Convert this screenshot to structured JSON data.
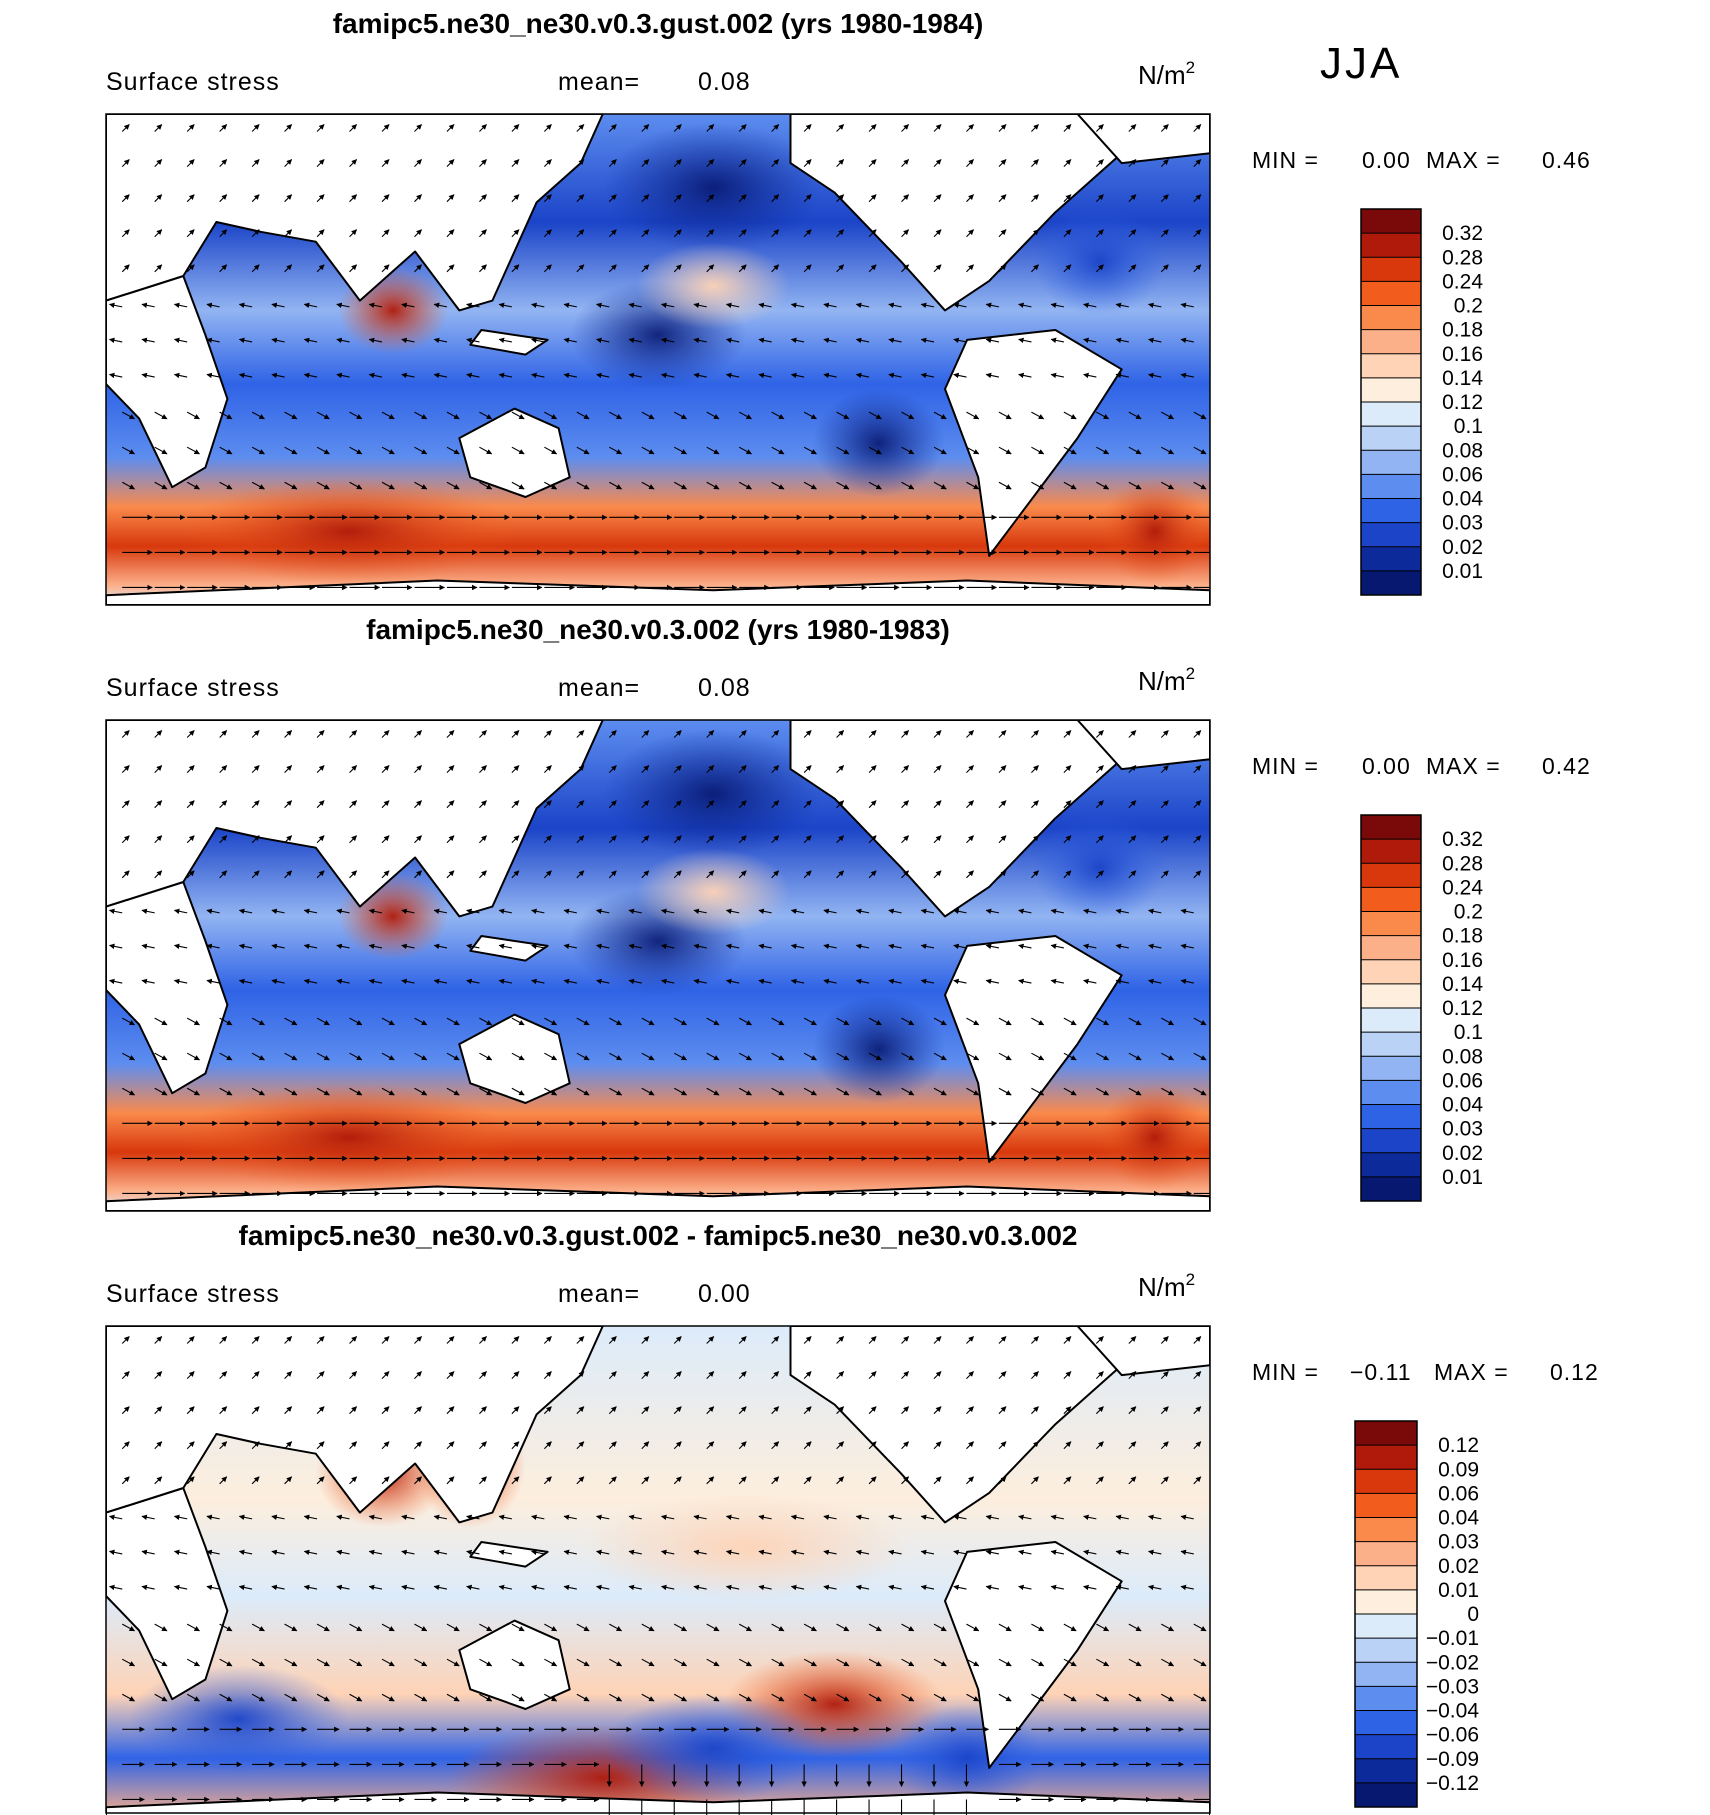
{
  "season": "JJA",
  "panels": [
    {
      "id": "gust",
      "title": "famipc5.ne30_ne30.v0.3.gust.002 (yrs 1980-1984)",
      "variable": "Surface stress",
      "mean_label": "mean=",
      "mean_value": "0.08",
      "unit": "N/m",
      "unit_sup": "2",
      "min_label": "MIN =",
      "min_value": "0.00",
      "max_label": "MAX =",
      "max_value": "0.46",
      "colorbar_labels": [
        "0.32",
        "0.28",
        "0.24",
        "0.2",
        "0.18",
        "0.16",
        "0.14",
        "0.12",
        "0.1",
        "0.08",
        "0.06",
        "0.04",
        "0.03",
        "0.02",
        "0.01"
      ],
      "colorbar_colors": [
        "#7a0a0a",
        "#b01a0a",
        "#d8380c",
        "#f25c1c",
        "#fa8a4c",
        "#fcb08a",
        "#fed3b6",
        "#fdeedd",
        "#dcebfa",
        "#b9d2f6",
        "#92b4f2",
        "#5d8def",
        "#2f63e6",
        "#1b44c8",
        "#0d2a9a",
        "#071870"
      ]
    },
    {
      "id": "control",
      "title": "famipc5.ne30_ne30.v0.3.002 (yrs 1980-1983)",
      "variable": "Surface stress",
      "mean_label": "mean=",
      "mean_value": "0.08",
      "unit": "N/m",
      "unit_sup": "2",
      "min_label": "MIN =",
      "min_value": "0.00",
      "max_label": "MAX =",
      "max_value": "0.42",
      "colorbar_labels": [
        "0.32",
        "0.28",
        "0.24",
        "0.2",
        "0.18",
        "0.16",
        "0.14",
        "0.12",
        "0.1",
        "0.08",
        "0.06",
        "0.04",
        "0.03",
        "0.02",
        "0.01"
      ],
      "colorbar_colors": [
        "#7a0a0a",
        "#b01a0a",
        "#d8380c",
        "#f25c1c",
        "#fa8a4c",
        "#fcb08a",
        "#fed3b6",
        "#fdeedd",
        "#dcebfa",
        "#b9d2f6",
        "#92b4f2",
        "#5d8def",
        "#2f63e6",
        "#1b44c8",
        "#0d2a9a",
        "#071870"
      ]
    },
    {
      "id": "diff",
      "title": "famipc5.ne30_ne30.v0.3.gust.002 - famipc5.ne30_ne30.v0.3.002",
      "variable": "Surface stress",
      "mean_label": "mean=",
      "mean_value": "0.00",
      "unit": "N/m",
      "unit_sup": "2",
      "min_label": "MIN =",
      "min_value": "−0.11",
      "max_label": "MAX =",
      "max_value": "0.12",
      "colorbar_labels": [
        "0.12",
        "0.09",
        "0.06",
        "0.04",
        "0.03",
        "0.02",
        "0.01",
        "0",
        "−0.01",
        "−0.02",
        "−0.03",
        "−0.04",
        "−0.06",
        "−0.09",
        "−0.12"
      ],
      "colorbar_colors": [
        "#7a0a0a",
        "#b01a0a",
        "#d8380c",
        "#f25c1c",
        "#fa8a4c",
        "#fcb08a",
        "#fed3b6",
        "#fdeedd",
        "#dcebfa",
        "#b9d2f6",
        "#92b4f2",
        "#5d8def",
        "#2f63e6",
        "#1b44c8",
        "#0d2a9a",
        "#071870"
      ]
    }
  ],
  "colors": {
    "land": "#ffffff",
    "coast": "#000000",
    "ocean_high": "#c8300e",
    "ocean_mid": "#fde4d0",
    "ocean_low": "#2350d8"
  }
}
